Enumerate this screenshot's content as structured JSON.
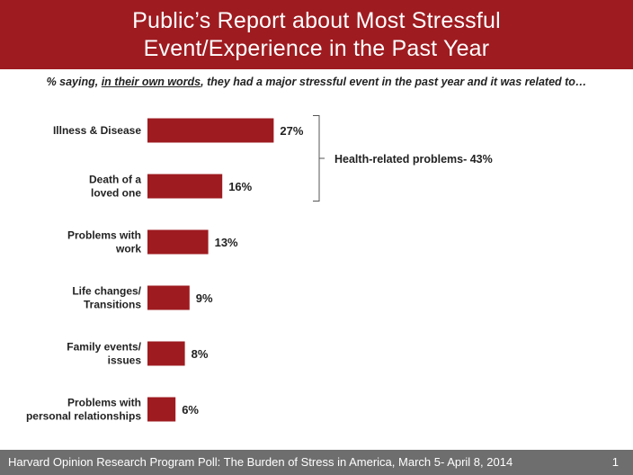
{
  "header": {
    "title_line1": "Public’s Report about Most Stressful",
    "title_line2": "Event/Experience in the Past Year"
  },
  "subtitle": {
    "prefix": "% saying, ",
    "underlined": "in their own words",
    "suffix": ", they had a major stressful event in the past year and it was related to…"
  },
  "chart_data": {
    "type": "bar",
    "orientation": "horizontal",
    "categories": [
      "Illness & Disease",
      "Death of a loved one",
      "Problems with work",
      "Life changes/ Transitions",
      "Family events/ issues",
      "Problems with personal relationships"
    ],
    "category_lines": [
      [
        "Illness & Disease"
      ],
      [
        "Death of a",
        "loved one"
      ],
      [
        "Problems with",
        "work"
      ],
      [
        "Life changes/",
        "Transitions"
      ],
      [
        "Family events/",
        "issues"
      ],
      [
        "Problems with",
        "personal relationships"
      ]
    ],
    "values": [
      27,
      16,
      13,
      9,
      8,
      6
    ],
    "data_labels": [
      "27%",
      "16%",
      "13%",
      "9%",
      "8%",
      "6%"
    ],
    "bar_color": "#9e1b20",
    "annotation": {
      "text": "Health-related problems- 43%",
      "spans_categories": [
        "Illness & Disease",
        "Death of a loved one"
      ]
    },
    "grid": false,
    "axes_visible": false
  },
  "footer": {
    "source": "Harvard Opinion Research Program  Poll: The Burden of Stress in America, March 5- April 8, 2014",
    "page_number": "1"
  },
  "colors": {
    "header_bg": "#9e1b20",
    "footer_bg": "#6e6e6e",
    "bar": "#9e1b20"
  }
}
